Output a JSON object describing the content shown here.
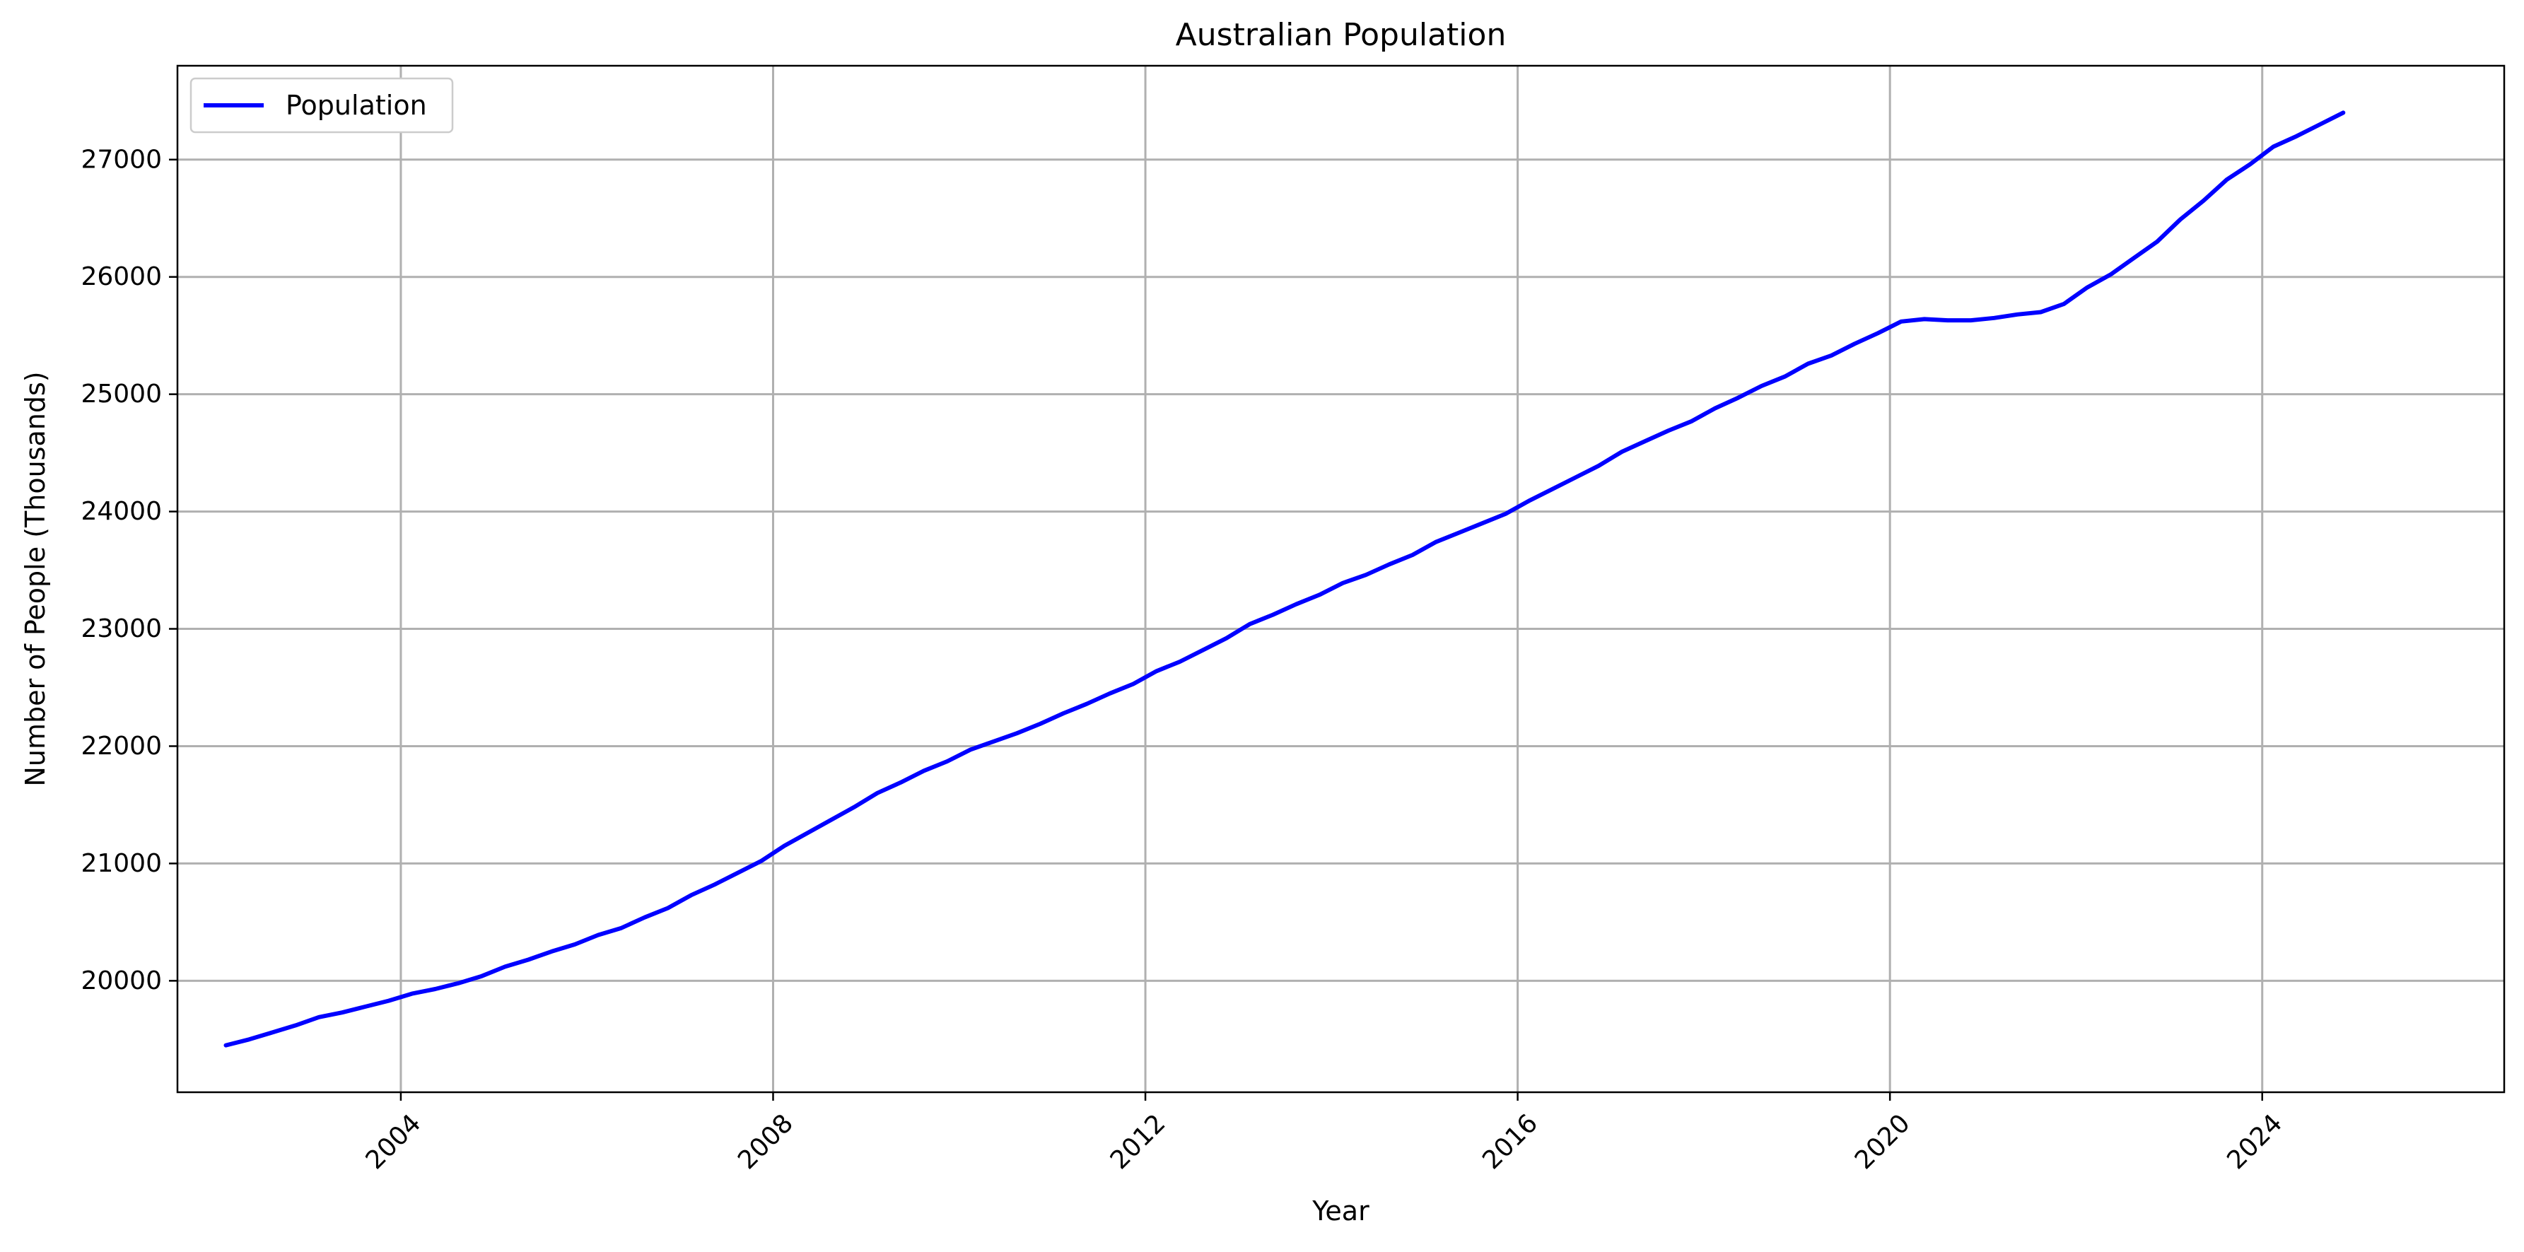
{
  "chart_data": {
    "type": "line",
    "title": "Australian Population",
    "xlabel": "Year",
    "ylabel": "Number of People (Thousands)",
    "x_ticks": [
      "2004",
      "2008",
      "2012",
      "2016",
      "2020",
      "2024"
    ],
    "y_ticks": [
      "20000",
      "21000",
      "22000",
      "23000",
      "24000",
      "25000",
      "26000",
      "27000"
    ],
    "xlim": [
      2001.6,
      2026.6
    ],
    "ylim": [
      19050,
      27800
    ],
    "grid": true,
    "legend_position": "top-left",
    "colors": {
      "series": "#0000ff",
      "grid": "#b0b0b0",
      "background": "#ffffff"
    },
    "series": [
      {
        "name": "Population",
        "x": [
          2002.12,
          2002.37,
          2002.62,
          2002.87,
          2003.12,
          2003.37,
          2003.62,
          2003.87,
          2004.12,
          2004.37,
          2004.62,
          2004.87,
          2005.12,
          2005.37,
          2005.62,
          2005.87,
          2006.12,
          2006.37,
          2006.62,
          2006.87,
          2007.12,
          2007.37,
          2007.62,
          2007.87,
          2008.12,
          2008.37,
          2008.62,
          2008.87,
          2009.12,
          2009.37,
          2009.62,
          2009.87,
          2010.12,
          2010.37,
          2010.62,
          2010.87,
          2011.12,
          2011.37,
          2011.62,
          2011.87,
          2012.12,
          2012.37,
          2012.62,
          2012.87,
          2013.12,
          2013.37,
          2013.62,
          2013.87,
          2014.12,
          2014.37,
          2014.62,
          2014.87,
          2015.12,
          2015.37,
          2015.62,
          2015.87,
          2016.12,
          2016.37,
          2016.62,
          2016.87,
          2017.12,
          2017.37,
          2017.62,
          2017.87,
          2018.12,
          2018.37,
          2018.62,
          2018.87,
          2019.12,
          2019.37,
          2019.62,
          2019.87,
          2020.12,
          2020.37,
          2020.62,
          2020.87,
          2021.12,
          2021.37,
          2021.62,
          2021.87,
          2022.12,
          2022.37,
          2022.62,
          2022.87,
          2023.12,
          2023.37,
          2023.62,
          2023.87,
          2024.12,
          2024.37,
          2024.62,
          2024.87
        ],
        "values": [
          19450,
          19500,
          19560,
          19620,
          19690,
          19730,
          19780,
          19830,
          19890,
          19930,
          19980,
          20040,
          20120,
          20180,
          20250,
          20310,
          20390,
          20450,
          20540,
          20620,
          20730,
          20820,
          20920,
          21020,
          21150,
          21260,
          21370,
          21480,
          21600,
          21690,
          21790,
          21870,
          21970,
          22040,
          22110,
          22190,
          22280,
          22360,
          22450,
          22530,
          22640,
          22720,
          22820,
          22920,
          23040,
          23120,
          23210,
          23290,
          23390,
          23460,
          23550,
          23630,
          23740,
          23820,
          23900,
          23980,
          24090,
          24190,
          24290,
          24390,
          24510,
          24600,
          24690,
          24770,
          24880,
          24970,
          25070,
          25150,
          25260,
          25330,
          25430,
          25520,
          25620,
          25640,
          25630,
          25630,
          25650,
          25680,
          25700,
          25770,
          25910,
          26020,
          26160,
          26300,
          26490,
          26650,
          26830,
          26960,
          27110,
          27200,
          27300,
          27400
        ]
      }
    ]
  }
}
